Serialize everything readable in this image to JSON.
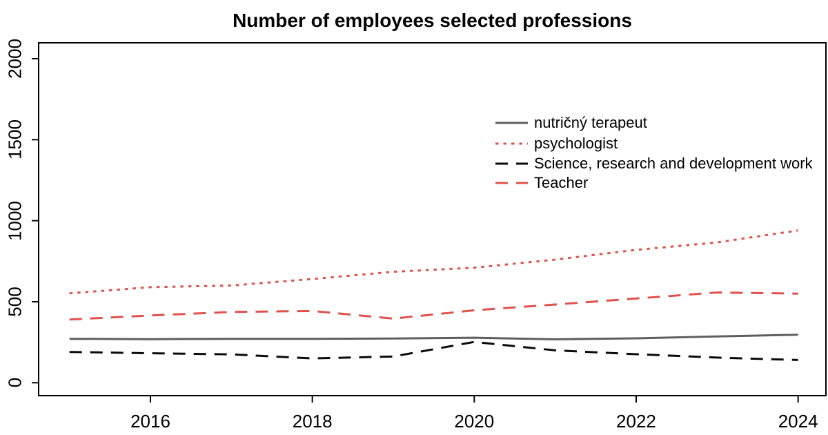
{
  "chart_data": {
    "type": "line",
    "title": "Number of employees selected professions",
    "x": [
      2015,
      2016,
      2017,
      2018,
      2019,
      2020,
      2021,
      2022,
      2023,
      2024
    ],
    "x_ticks": [
      2016,
      2018,
      2020,
      2022,
      2024
    ],
    "x_tick_labels": [
      "2016",
      "2018",
      "2020",
      "2022",
      "2024"
    ],
    "y_ticks": [
      0,
      500,
      1000,
      1500,
      2000
    ],
    "y_tick_labels": [
      "0",
      "500",
      "1000",
      "1500",
      "2000"
    ],
    "ylim": [
      0,
      2080
    ],
    "xlabel": "",
    "ylabel": "",
    "grid": false,
    "legend_position": "inside-right-upper",
    "legend_box": "none",
    "series": [
      {
        "name": "nutričný terapeut",
        "color": "#5e5e5e",
        "line_style": "solid",
        "values": [
          271,
          269,
          271,
          271,
          273,
          278,
          268,
          274,
          286,
          296
        ]
      },
      {
        "name": "psychologist",
        "color": "#e0514c",
        "line_style": "dotted",
        "values": [
          552,
          590,
          600,
          640,
          685,
          710,
          760,
          820,
          866,
          940
        ]
      },
      {
        "name": "Science, research and development work",
        "color": "#0a0a0a",
        "line_style": "dashed",
        "values": [
          190,
          182,
          175,
          150,
          162,
          252,
          200,
          176,
          155,
          140
        ]
      },
      {
        "name": "Teacher",
        "color": "#e0514c",
        "line_style": "dashed",
        "values": [
          390,
          415,
          437,
          443,
          396,
          447,
          483,
          520,
          557,
          550
        ]
      }
    ]
  }
}
